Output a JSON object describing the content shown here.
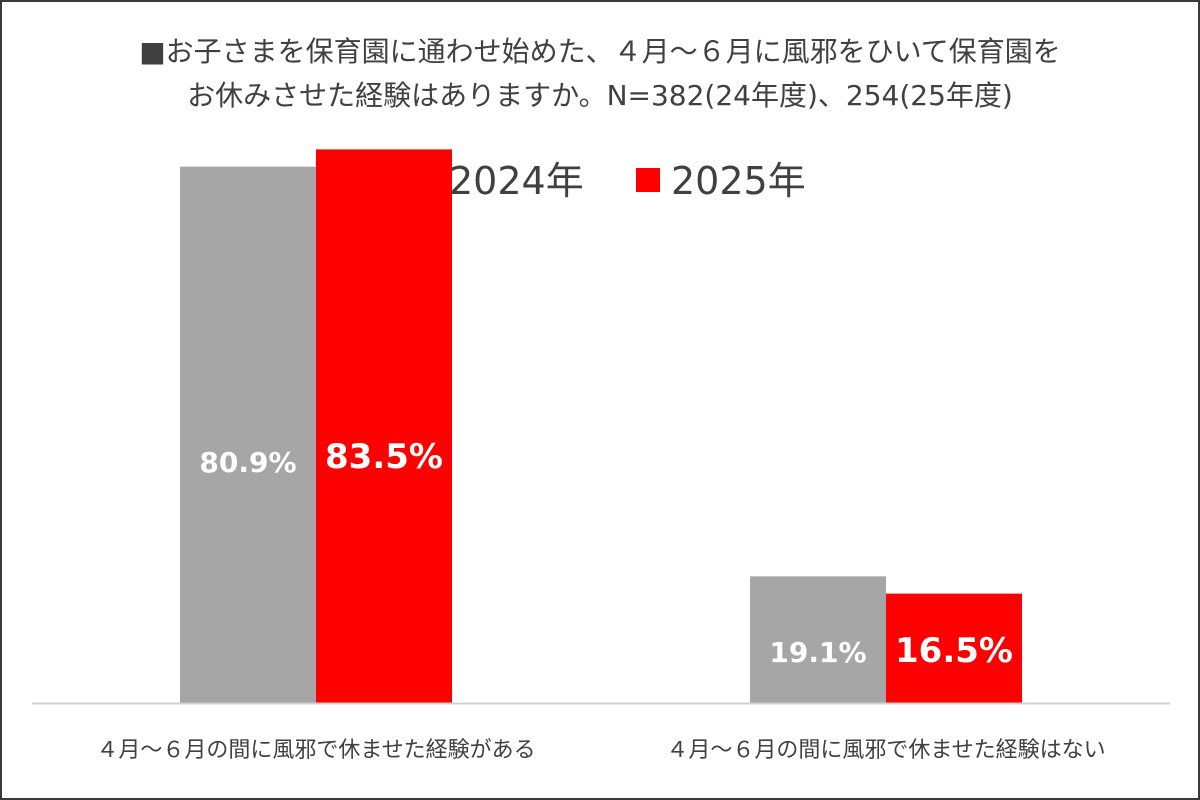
{
  "title": {
    "line1": "■お子さまを保育園に通わせ始めた、４月～６月に風邪をひいて保育園を",
    "line2": "お休みさせた経験はありますか。N=382(24年度)、254(25年度)"
  },
  "chart_data": {
    "type": "bar",
    "title": "■お子さまを保育園に通わせ始めた、４月～６月に風邪をひいて保育園をお休みさせた経験はありますか。N=382(24年度)、254(25年度)",
    "categories": [
      "４月～６月の間に風邪で休ませた経験がある",
      "４月～６月の間に風邪で休ませた経験はない"
    ],
    "series": [
      {
        "name": "2024年",
        "color": "#a6a6a6",
        "values": [
          80.9,
          19.1
        ],
        "labels": [
          "80.9%",
          "19.1%"
        ]
      },
      {
        "name": "2025年",
        "color": "#ff0000",
        "values": [
          83.5,
          16.5
        ],
        "labels": [
          "83.5%",
          "16.5%"
        ]
      }
    ],
    "xlabel": "",
    "ylabel": "",
    "ylim": [
      0,
      100
    ],
    "grid": false,
    "legend_position": "top"
  }
}
